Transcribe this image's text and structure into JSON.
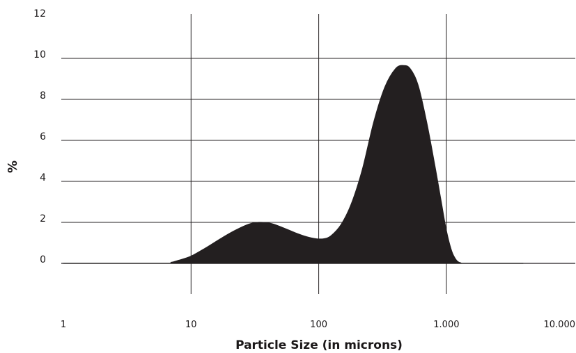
{
  "chart_data": {
    "type": "area",
    "xlabel": "Particle Size (in microns)",
    "ylabel": "%",
    "x_scale": "log",
    "xlim": [
      1,
      10000
    ],
    "ylim": [
      0,
      12
    ],
    "x_ticks": [
      {
        "value": 1,
        "label": "1"
      },
      {
        "value": 10,
        "label": "10"
      },
      {
        "value": 100,
        "label": "100"
      },
      {
        "value": 1000,
        "label": "1.000"
      },
      {
        "value": 10000,
        "label": "10.000"
      }
    ],
    "y_ticks": [
      {
        "value": 0,
        "label": "0"
      },
      {
        "value": 2,
        "label": "2"
      },
      {
        "value": 4,
        "label": "4"
      },
      {
        "value": 6,
        "label": "6"
      },
      {
        "value": 8,
        "label": "8"
      },
      {
        "value": 10,
        "label": "10"
      },
      {
        "value": 12,
        "label": "12"
      }
    ],
    "grid": {
      "vertical": true,
      "horizontal": true
    },
    "colors": {
      "fill": "#231f20",
      "grid": "#231f20",
      "text": "#1a1718"
    },
    "series": [
      {
        "x": [
          1,
          6,
          7,
          8,
          10,
          13,
          17,
          22,
          28,
          34,
          42,
          52,
          65,
          80,
          95,
          110,
          125,
          150,
          180,
          220,
          270,
          330,
          400,
          460,
          520,
          600,
          700,
          800,
          900,
          1000,
          1100,
          1200,
          1300,
          1400,
          4000
        ],
        "y": [
          0,
          0,
          0.05,
          0.15,
          0.35,
          0.75,
          1.2,
          1.6,
          1.9,
          2.0,
          1.95,
          1.75,
          1.5,
          1.3,
          1.2,
          1.2,
          1.35,
          1.9,
          2.9,
          4.6,
          6.9,
          8.6,
          9.5,
          9.65,
          9.5,
          8.7,
          6.9,
          5.0,
          3.2,
          1.6,
          0.6,
          0.15,
          0.02,
          0,
          0
        ]
      }
    ]
  }
}
